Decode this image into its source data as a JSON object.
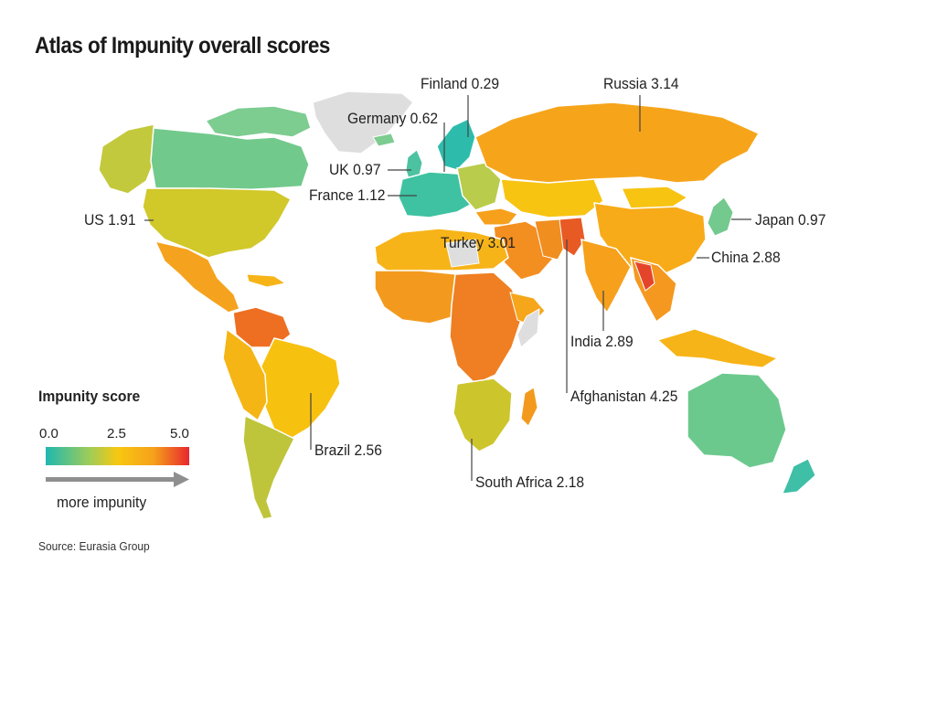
{
  "title": "Atlas of Impunity overall scores",
  "legend": {
    "title": "Impunity score",
    "ticks": [
      "0.0",
      "2.5",
      "5.0"
    ],
    "direction_label": "more impunity",
    "scale_min": 0,
    "scale_max": 5,
    "colors": {
      "low": "#1fb8b0",
      "mid_low": "#7cc98a",
      "mid": "#f7c811",
      "mid_high": "#f6a11a",
      "high": "#e8272f"
    }
  },
  "source": "Source: Eurasia Group",
  "countries": [
    {
      "name": "Finland",
      "score": "0.29",
      "label": "Finland 0.29"
    },
    {
      "name": "Russia",
      "score": "3.14",
      "label": "Russia 3.14"
    },
    {
      "name": "Germany",
      "score": "0.62",
      "label": "Germany 0.62"
    },
    {
      "name": "UK",
      "score": "0.97",
      "label": "UK 0.97"
    },
    {
      "name": "France",
      "score": "1.12",
      "label": "France 1.12"
    },
    {
      "name": "US",
      "score": "1.91",
      "label": "US 1.91"
    },
    {
      "name": "Japan",
      "score": "0.97",
      "label": "Japan 0.97"
    },
    {
      "name": "Turkey",
      "score": "3.01",
      "label": "Turkey 3.01"
    },
    {
      "name": "China",
      "score": "2.88",
      "label": "China 2.88"
    },
    {
      "name": "India",
      "score": "2.89",
      "label": "India 2.89"
    },
    {
      "name": "Afghanistan",
      "score": "4.25",
      "label": "Afghanistan 4.25"
    },
    {
      "name": "Brazil",
      "score": "2.56",
      "label": "Brazil 2.56"
    },
    {
      "name": "South Africa",
      "score": "2.18",
      "label": "South Africa 2.18"
    }
  ]
}
